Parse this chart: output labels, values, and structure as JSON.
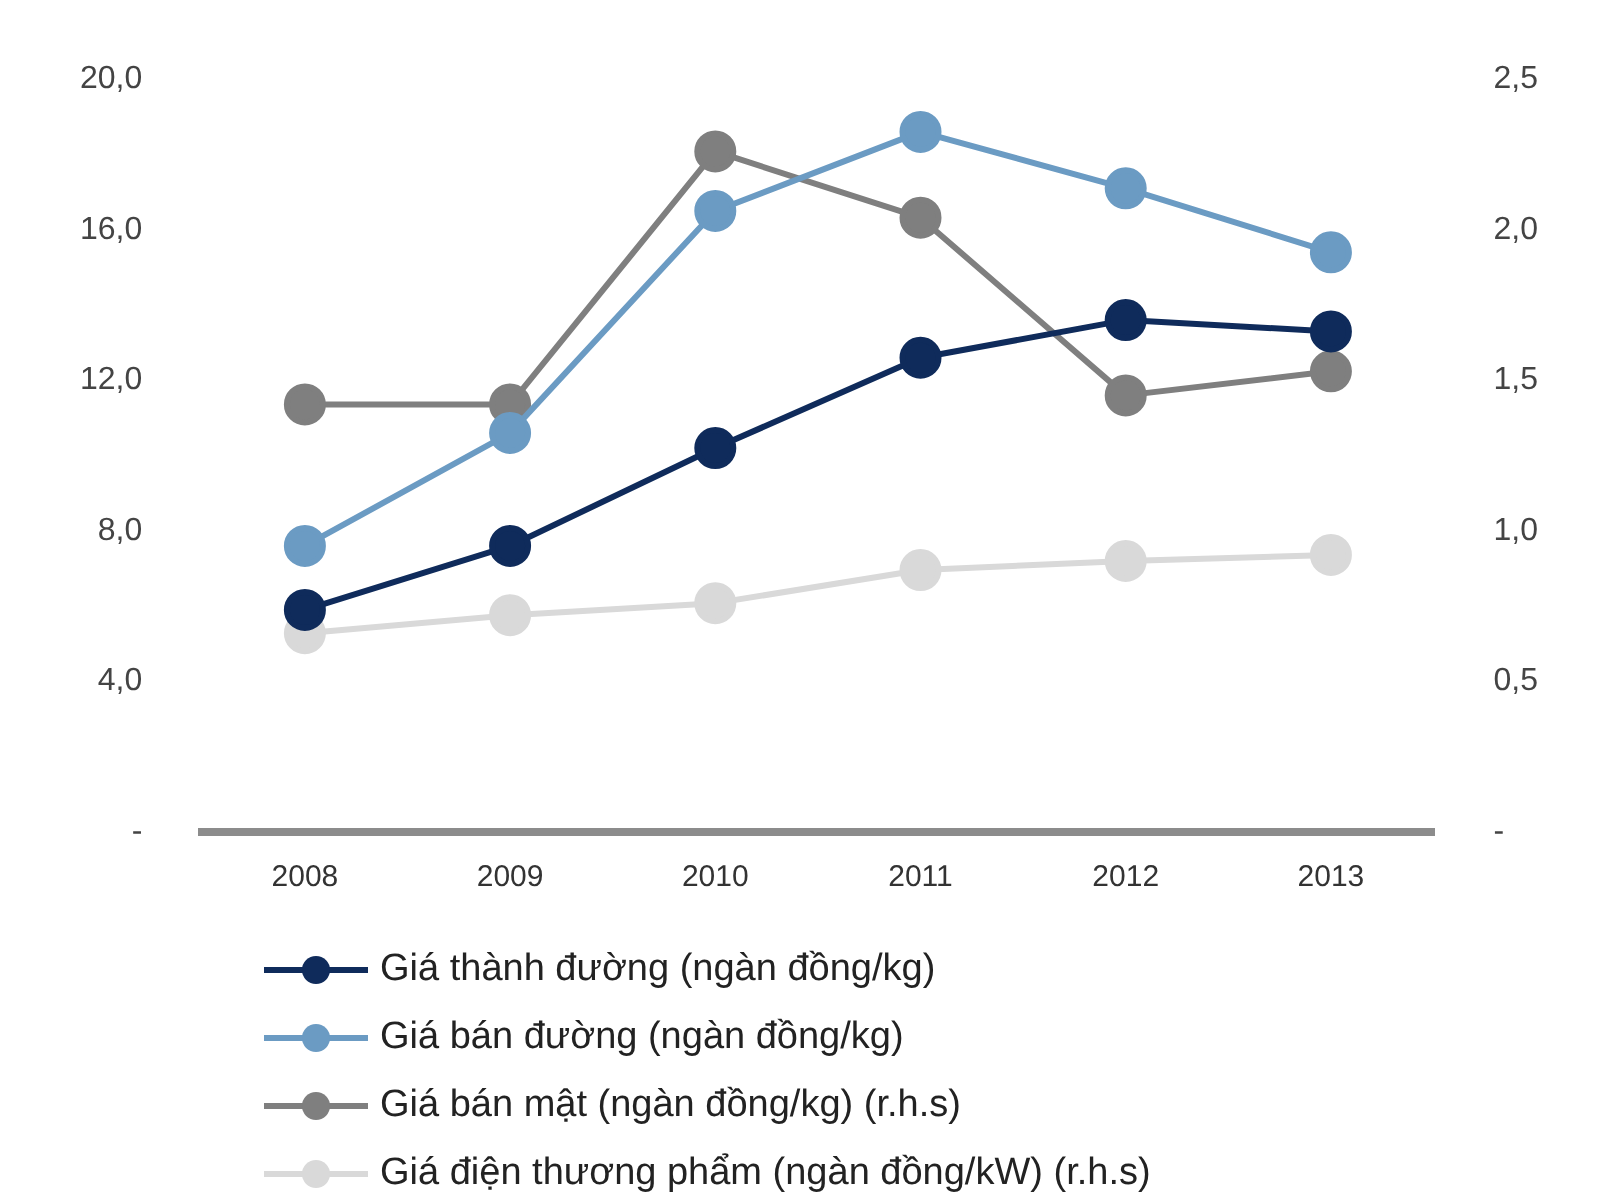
{
  "chart_data": {
    "type": "line",
    "categories": [
      "2008",
      "2009",
      "2010",
      "2011",
      "2012",
      "2013"
    ],
    "series": [
      {
        "name": "Giá thành đường (ngàn đồng/kg)",
        "color": "#0f2b5b",
        "values": [
          5.9,
          7.6,
          10.2,
          12.6,
          13.6,
          13.3
        ]
      },
      {
        "name": "Giá bán đường (ngàn đồng/kg)",
        "color": "#6b9bc3",
        "values": [
          7.6,
          10.6,
          16.5,
          18.6,
          17.1,
          15.4
        ]
      },
      {
        "name": "Giá bán mật (ngàn đồng/kg) (r.h.s)",
        "color": "#7f7f7f",
        "axis": "y2",
        "values": [
          1.42,
          1.42,
          2.26,
          2.04,
          1.45,
          1.53
        ]
      },
      {
        "name": "Giá điện thương phẩm (ngàn đồng/kW)  (r.h.s)",
        "color": "#d9d9d9",
        "axis": "y2",
        "values": [
          0.66,
          0.72,
          0.76,
          0.87,
          0.9,
          0.92
        ]
      }
    ],
    "ylim": [
      0,
      20
    ],
    "yticks": [
      {
        "value": 0,
        "label": "-"
      },
      {
        "value": 4,
        "label": "4,0"
      },
      {
        "value": 8,
        "label": "8,0"
      },
      {
        "value": 12,
        "label": "12,0"
      },
      {
        "value": 16,
        "label": "16,0"
      },
      {
        "value": 20,
        "label": "20,0"
      }
    ],
    "y2lim": [
      0,
      2.5
    ],
    "y2ticks": [
      {
        "value": 0,
        "label": "-"
      },
      {
        "value": 0.5,
        "label": "0,5"
      },
      {
        "value": 1,
        "label": "1,0"
      },
      {
        "value": 1.5,
        "label": "1,5"
      },
      {
        "value": 2,
        "label": "2,0"
      },
      {
        "value": 2.5,
        "label": "2,5"
      }
    ],
    "grid": false,
    "legend": "bottom",
    "marker": "circle",
    "line_style": "solid"
  }
}
